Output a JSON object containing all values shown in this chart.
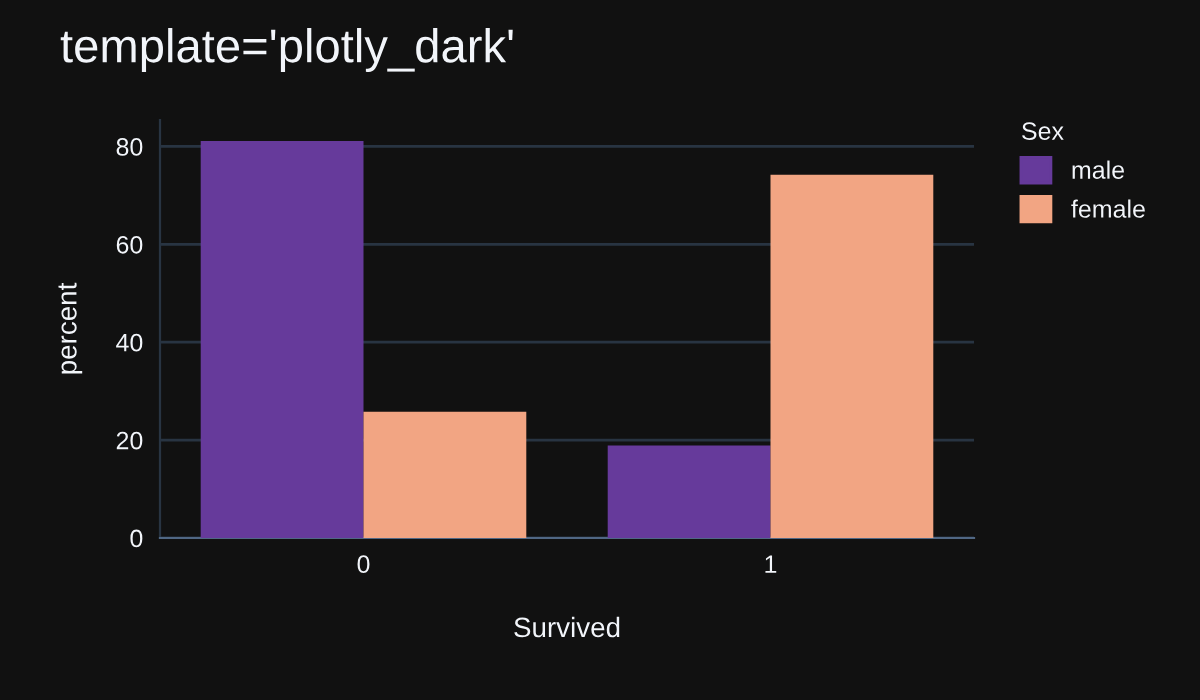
{
  "chart_data": {
    "type": "bar",
    "title": "template='plotly_dark'",
    "xlabel": "Survived",
    "ylabel": "percent",
    "legend_title": "Sex",
    "categories": [
      "0",
      "1"
    ],
    "series": [
      {
        "name": "male",
        "color": "#663a9b",
        "values": [
          81.1,
          18.9
        ]
      },
      {
        "name": "female",
        "color": "#f2a583",
        "values": [
          25.8,
          74.2
        ]
      }
    ],
    "ylim": [
      0,
      85.4
    ],
    "yticks": [
      0,
      20,
      40,
      60,
      80
    ],
    "grid": "y",
    "legend": "top right"
  }
}
